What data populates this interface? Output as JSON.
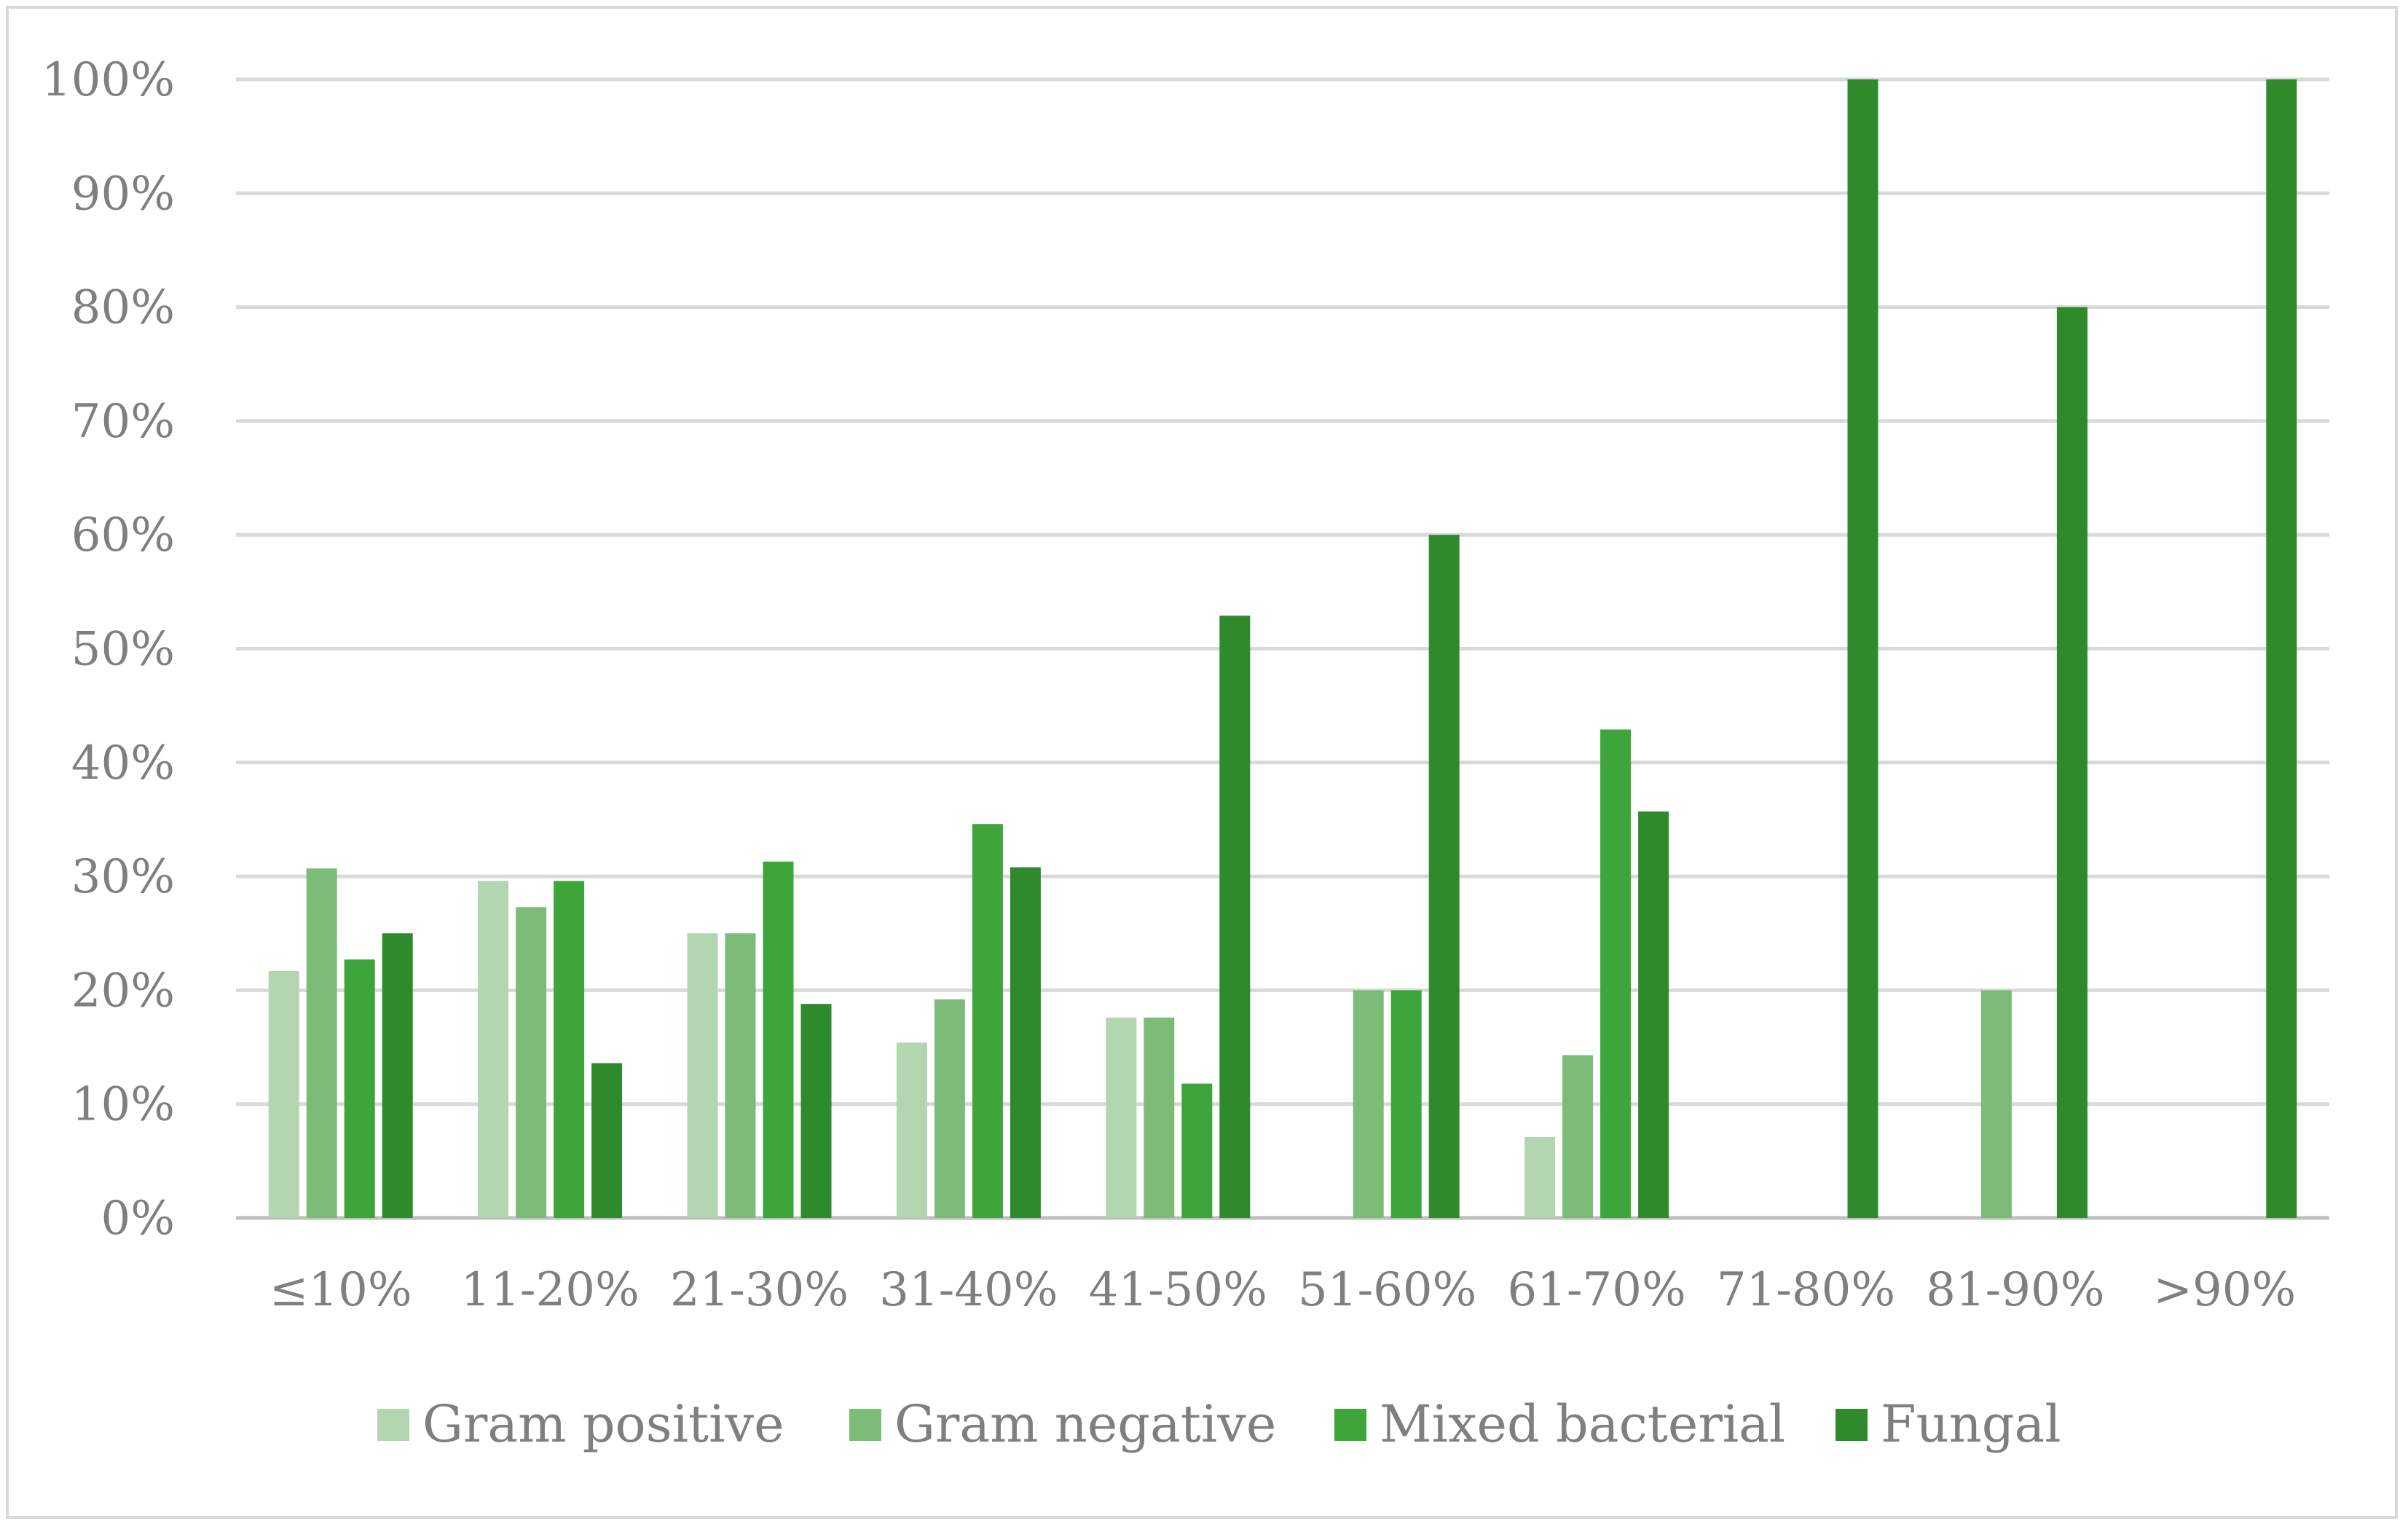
{
  "chart_data": {
    "type": "bar",
    "title": "",
    "xlabel": "",
    "ylabel": "",
    "ylim": [
      0,
      100
    ],
    "y_ticks": [
      "0%",
      "10%",
      "20%",
      "30%",
      "40%",
      "50%",
      "60%",
      "70%",
      "80%",
      "90%",
      "100%"
    ],
    "grid": true,
    "legend_position": "bottom",
    "categories": [
      "≤10%",
      "11-20%",
      "21-30%",
      "31-40%",
      "41-50%",
      "51-60%",
      "61-70%",
      "71-80%",
      "81-90%",
      ">90%"
    ],
    "series": [
      {
        "name": "Gram positive",
        "color": "#b3d6b0",
        "values": [
          21.7,
          29.6,
          25.0,
          15.4,
          17.6,
          0,
          7.1,
          0,
          0,
          0
        ]
      },
      {
        "name": "Gram negative",
        "color": "#7dbb78",
        "values": [
          30.7,
          27.3,
          25.0,
          19.2,
          17.6,
          20.0,
          14.3,
          0,
          20.0,
          0
        ]
      },
      {
        "name": "Mixed bacterial",
        "color": "#3ea53a",
        "values": [
          22.7,
          29.6,
          31.3,
          34.6,
          11.8,
          20.0,
          42.9,
          0,
          0,
          0
        ]
      },
      {
        "name": "Fungal",
        "color": "#2f8a2c",
        "values": [
          25.0,
          13.6,
          18.8,
          30.8,
          52.9,
          60.0,
          35.7,
          100,
          80.0,
          100
        ]
      }
    ]
  }
}
